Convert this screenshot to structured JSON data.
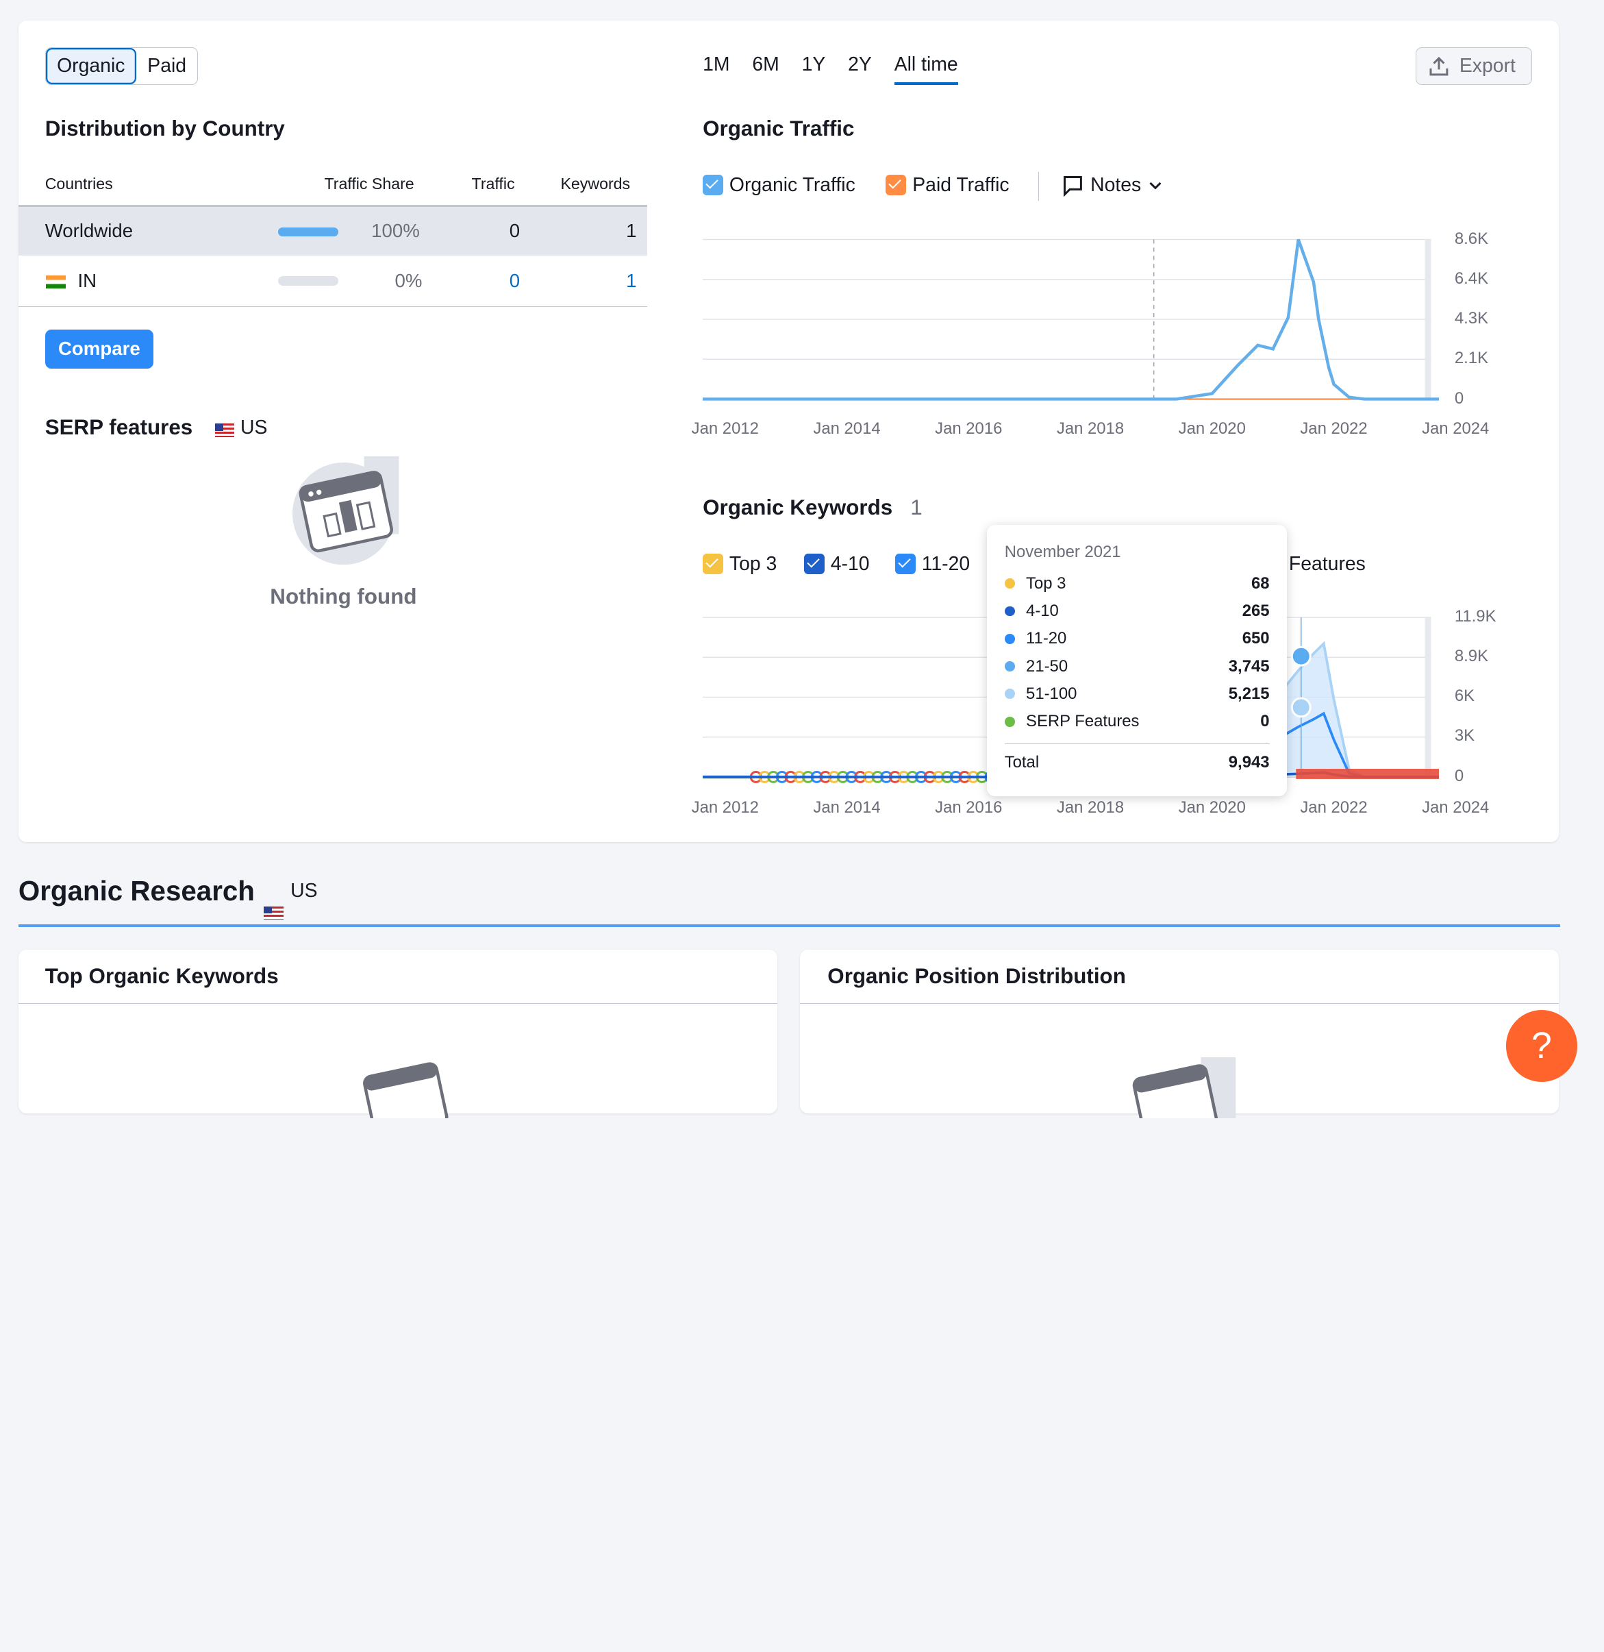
{
  "toggle": {
    "organic": "Organic",
    "paid": "Paid"
  },
  "distribution": {
    "title": "Distribution by Country",
    "headers": {
      "countries": "Countries",
      "share": "Traffic Share",
      "traffic": "Traffic",
      "keywords": "Keywords"
    },
    "rows": [
      {
        "country": "Worldwide",
        "share": "100%",
        "share_fraction": 1.0,
        "traffic": "0",
        "keywords": "1"
      },
      {
        "country": "IN",
        "share": "0%",
        "share_fraction": 0.0,
        "traffic": "0",
        "keywords": "1"
      }
    ],
    "compare_label": "Compare"
  },
  "serp": {
    "title": "SERP features",
    "db": "US",
    "empty_text": "Nothing found"
  },
  "periods": [
    "1M",
    "6M",
    "1Y",
    "2Y",
    "All time"
  ],
  "selected_period": "All time",
  "export_label": "Export",
  "traffic_chart": {
    "title": "Organic Traffic",
    "legend": {
      "organic": "Organic Traffic",
      "paid": "Paid Traffic",
      "notes": "Notes"
    },
    "colors": {
      "organic": "#64aeea",
      "paid": "#ff8c42"
    },
    "y_ticks": [
      "8.6K",
      "6.4K",
      "4.3K",
      "2.1K",
      "0"
    ],
    "x_ticks": [
      "Jan 2012",
      "Jan 2014",
      "Jan 2016",
      "Jan 2018",
      "Jan 2020",
      "Jan 2022",
      "Jan 2024"
    ]
  },
  "keywords_chart": {
    "title": "Organic Keywords",
    "count": "1",
    "legend": {
      "top3": "Top 3",
      "r4_10": "4-10",
      "r11_20": "11-20",
      "features": "Features"
    },
    "y_ticks": [
      "11.9K",
      "8.9K",
      "6K",
      "3K",
      "0"
    ],
    "x_ticks": [
      "Jan 2012",
      "Jan 2014",
      "Jan 2016",
      "Jan 2018",
      "Jan 2020",
      "Jan 2022",
      "Jan 2024"
    ]
  },
  "tooltip": {
    "date": "November 2021",
    "rows": [
      {
        "name": "Top 3",
        "value": "68",
        "color": "#f5c242"
      },
      {
        "name": "4-10",
        "value": "265",
        "color": "#1f5fc9"
      },
      {
        "name": "11-20",
        "value": "650",
        "color": "#2b8af7"
      },
      {
        "name": "21-50",
        "value": "3,745",
        "color": "#5aabf0"
      },
      {
        "name": "51-100",
        "value": "5,215",
        "color": "#a9d3f6"
      },
      {
        "name": "SERP Features",
        "value": "0",
        "color": "#6cbd45"
      }
    ],
    "total_label": "Total",
    "total_value": "9,943"
  },
  "chart_data": [
    {
      "type": "line",
      "title": "Organic Traffic",
      "x": [
        "2012-01",
        "2014-01",
        "2016-01",
        "2018-01",
        "2019-06",
        "2020-01",
        "2020-06",
        "2020-10",
        "2021-01",
        "2021-04",
        "2021-06",
        "2021-09",
        "2021-10",
        "2021-12",
        "2022-01",
        "2022-04",
        "2022-07",
        "2022-12",
        "2024-01"
      ],
      "series": [
        {
          "name": "Organic Traffic",
          "values": [
            0,
            0,
            0,
            0,
            0,
            300,
            1800,
            2900,
            2700,
            4400,
            8600,
            6300,
            4300,
            1700,
            800,
            100,
            0,
            0,
            0
          ]
        },
        {
          "name": "Paid Traffic",
          "values": [
            0,
            0,
            0,
            0,
            0,
            0,
            0,
            0,
            0,
            0,
            0,
            0,
            0,
            0,
            0,
            0,
            0,
            0,
            0
          ]
        }
      ],
      "ylim": [
        0,
        8600
      ]
    },
    {
      "type": "area",
      "title": "Organic Keywords",
      "x": [
        "2012-01",
        "2014-01",
        "2016-01",
        "2018-01",
        "2020-01",
        "2021-06",
        "2021-09",
        "2021-11",
        "2022-01",
        "2022-04",
        "2022-07",
        "2024-01"
      ],
      "series": [
        {
          "name": "Top 3",
          "values": [
            0,
            0,
            0,
            0,
            0,
            40,
            60,
            68,
            30,
            5,
            0,
            0
          ]
        },
        {
          "name": "4-10",
          "values": [
            0,
            0,
            0,
            0,
            0,
            200,
            240,
            265,
            150,
            20,
            0,
            0
          ]
        },
        {
          "name": "11-20",
          "values": [
            0,
            0,
            0,
            0,
            0,
            500,
            600,
            650,
            400,
            40,
            0,
            0
          ]
        },
        {
          "name": "21-50",
          "values": [
            0,
            0,
            0,
            0,
            0,
            3000,
            3400,
            3745,
            2200,
            200,
            0,
            0
          ]
        },
        {
          "name": "51-100",
          "values": [
            0,
            0,
            0,
            0,
            0,
            4200,
            4900,
            5215,
            3000,
            300,
            0,
            0
          ]
        },
        {
          "name": "SERP Features",
          "values": [
            0,
            0,
            0,
            0,
            0,
            0,
            0,
            0,
            0,
            0,
            0,
            0
          ]
        }
      ],
      "ylim": [
        0,
        11900
      ]
    }
  ]
}
